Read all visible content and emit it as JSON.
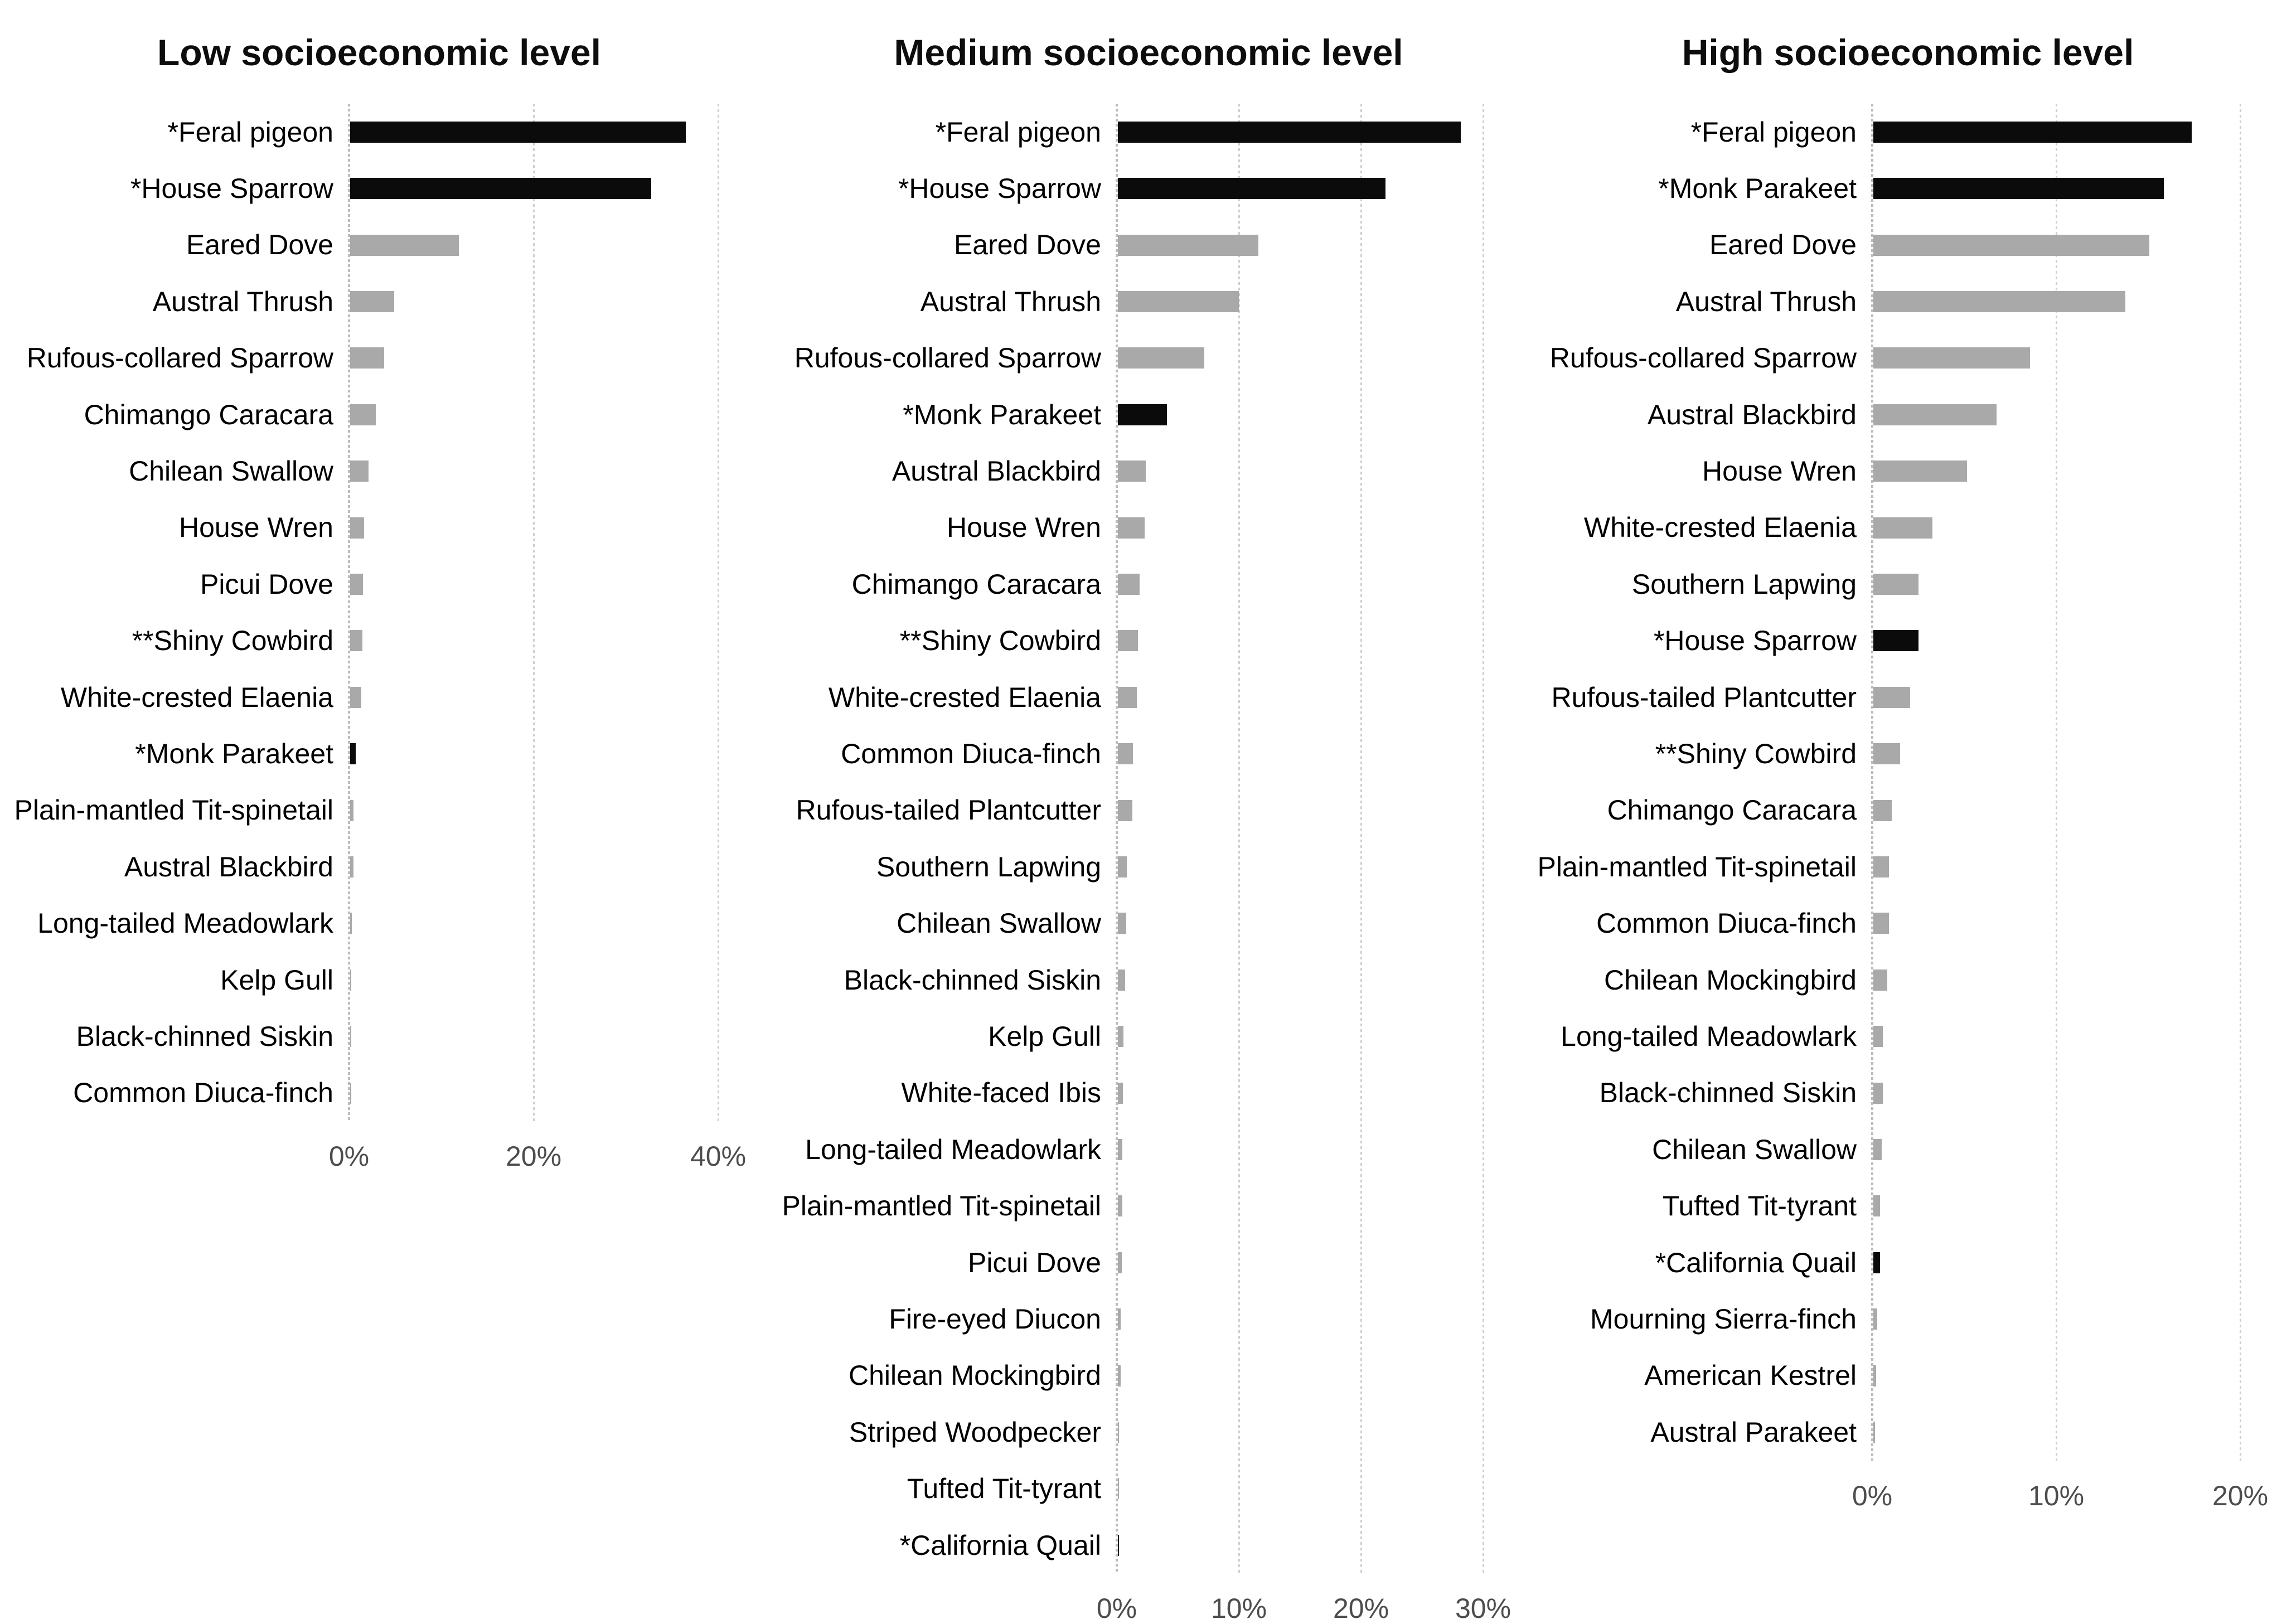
{
  "figure": {
    "background": "#ffffff",
    "bar_colors": {
      "black": "#0b0b0b",
      "gray": "#a9a9a9"
    },
    "gridline_color": "#cfcfcf",
    "axis_line_color": "#bdbdbd",
    "tick_label_color": "#4d4d4d",
    "title_color": "#0d0d0d",
    "species_label_color": "#000000"
  },
  "chart_data": [
    {
      "type": "bar",
      "orientation": "horizontal",
      "title": "Low socioeconomic level",
      "value_unit": "percent",
      "xlim": [
        0,
        43
      ],
      "x_ticks": [
        "0%",
        "20%",
        "40%"
      ],
      "x_tick_values": [
        0,
        20,
        40
      ],
      "grid": true,
      "species": [
        {
          "label": "*Feral pigeon",
          "value": 36.4,
          "bar": "black"
        },
        {
          "label": "*House Sparrow",
          "value": 32.6,
          "bar": "black"
        },
        {
          "label": "Eared Dove",
          "value": 11.8,
          "bar": "gray"
        },
        {
          "label": "Austral Thrush",
          "value": 4.8,
          "bar": "gray"
        },
        {
          "label": "Rufous-collared Sparrow",
          "value": 3.7,
          "bar": "gray"
        },
        {
          "label": "Chimango Caracara",
          "value": 2.8,
          "bar": "gray"
        },
        {
          "label": "Chilean Swallow",
          "value": 2.0,
          "bar": "gray"
        },
        {
          "label": "House Wren",
          "value": 1.5,
          "bar": "gray"
        },
        {
          "label": "Picui Dove",
          "value": 1.4,
          "bar": "gray"
        },
        {
          "label": "**Shiny Cowbird",
          "value": 1.3,
          "bar": "gray"
        },
        {
          "label": "White-crested Elaenia",
          "value": 1.2,
          "bar": "gray"
        },
        {
          "label": "*Monk Parakeet",
          "value": 0.6,
          "bar": "black"
        },
        {
          "label": "Plain-mantled Tit-spinetail",
          "value": 0.35,
          "bar": "gray"
        },
        {
          "label": "Austral Blackbird",
          "value": 0.35,
          "bar": "gray"
        },
        {
          "label": "Long-tailed Meadowlark",
          "value": 0.2,
          "bar": "gray"
        },
        {
          "label": "Kelp Gull",
          "value": 0.15,
          "bar": "gray"
        },
        {
          "label": "Black-chinned Siskin",
          "value": 0.1,
          "bar": "gray"
        },
        {
          "label": "Common Diuca-finch",
          "value": 0.1,
          "bar": "gray"
        }
      ]
    },
    {
      "type": "bar",
      "orientation": "horizontal",
      "title": "Medium socioeconomic level",
      "value_unit": "percent",
      "xlim": [
        0,
        34
      ],
      "x_ticks": [
        "0%",
        "10%",
        "20%",
        "30%"
      ],
      "x_tick_values": [
        0,
        10,
        20,
        30
      ],
      "grid": true,
      "species": [
        {
          "label": "*Feral pigeon",
          "value": 28.1,
          "bar": "black"
        },
        {
          "label": "*House Sparrow",
          "value": 21.9,
          "bar": "black"
        },
        {
          "label": "Eared Dove",
          "value": 11.5,
          "bar": "gray"
        },
        {
          "label": "Austral Thrush",
          "value": 9.9,
          "bar": "gray"
        },
        {
          "label": "Rufous-collared Sparrow",
          "value": 7.1,
          "bar": "gray"
        },
        {
          "label": "*Monk Parakeet",
          "value": 4.0,
          "bar": "black"
        },
        {
          "label": "Austral Blackbird",
          "value": 2.3,
          "bar": "gray"
        },
        {
          "label": "House Wren",
          "value": 2.2,
          "bar": "gray"
        },
        {
          "label": "Chimango Caracara",
          "value": 1.8,
          "bar": "gray"
        },
        {
          "label": "**Shiny Cowbird",
          "value": 1.65,
          "bar": "gray"
        },
        {
          "label": "White-crested Elaenia",
          "value": 1.55,
          "bar": "gray"
        },
        {
          "label": "Common Diuca-finch",
          "value": 1.25,
          "bar": "gray"
        },
        {
          "label": "Rufous-tailed Plantcutter",
          "value": 1.2,
          "bar": "gray"
        },
        {
          "label": "Southern Lapwing",
          "value": 0.75,
          "bar": "gray"
        },
        {
          "label": "Chilean Swallow",
          "value": 0.7,
          "bar": "gray"
        },
        {
          "label": "Black-chinned Siskin",
          "value": 0.6,
          "bar": "gray"
        },
        {
          "label": "Kelp Gull",
          "value": 0.45,
          "bar": "gray"
        },
        {
          "label": "White-faced Ibis",
          "value": 0.4,
          "bar": "gray"
        },
        {
          "label": "Long-tailed Meadowlark",
          "value": 0.35,
          "bar": "gray"
        },
        {
          "label": "Plain-mantled Tit-spinetail",
          "value": 0.35,
          "bar": "gray"
        },
        {
          "label": "Picui Dove",
          "value": 0.3,
          "bar": "gray"
        },
        {
          "label": "Fire-eyed Diucon",
          "value": 0.25,
          "bar": "gray"
        },
        {
          "label": "Chilean Mockingbird",
          "value": 0.25,
          "bar": "gray"
        },
        {
          "label": "Striped Woodpecker",
          "value": 0.1,
          "bar": "gray"
        },
        {
          "label": "Tufted Tit-tyrant",
          "value": 0.1,
          "bar": "gray"
        },
        {
          "label": "*California Quail",
          "value": 0.05,
          "bar": "black"
        }
      ]
    },
    {
      "type": "bar",
      "orientation": "horizontal",
      "title": "High socioeconomic level",
      "value_unit": "percent",
      "xlim": [
        0,
        21
      ],
      "x_ticks": [
        "0%",
        "10%",
        "20%"
      ],
      "x_tick_values": [
        0,
        10,
        20
      ],
      "grid": true,
      "species": [
        {
          "label": "*Feral pigeon",
          "value": 17.3,
          "bar": "black"
        },
        {
          "label": "*Monk Parakeet",
          "value": 15.8,
          "bar": "black"
        },
        {
          "label": "Eared Dove",
          "value": 15.0,
          "bar": "gray"
        },
        {
          "label": "Austral Thrush",
          "value": 13.7,
          "bar": "gray"
        },
        {
          "label": "Rufous-collared Sparrow",
          "value": 8.5,
          "bar": "gray"
        },
        {
          "label": "Austral Blackbird",
          "value": 6.7,
          "bar": "gray"
        },
        {
          "label": "House Wren",
          "value": 5.1,
          "bar": "gray"
        },
        {
          "label": "White-crested Elaenia",
          "value": 3.2,
          "bar": "gray"
        },
        {
          "label": "Southern Lapwing",
          "value": 2.45,
          "bar": "gray"
        },
        {
          "label": "*House Sparrow",
          "value": 2.45,
          "bar": "black"
        },
        {
          "label": "Rufous-tailed Plantcutter",
          "value": 2.0,
          "bar": "gray"
        },
        {
          "label": "**Shiny Cowbird",
          "value": 1.45,
          "bar": "gray"
        },
        {
          "label": "Chimango Caracara",
          "value": 1.0,
          "bar": "gray"
        },
        {
          "label": "Plain-mantled Tit-spinetail",
          "value": 0.85,
          "bar": "gray"
        },
        {
          "label": "Common Diuca-finch",
          "value": 0.85,
          "bar": "gray"
        },
        {
          "label": "Chilean Mockingbird",
          "value": 0.75,
          "bar": "gray"
        },
        {
          "label": "Long-tailed Meadowlark",
          "value": 0.5,
          "bar": "gray"
        },
        {
          "label": "Black-chinned Siskin",
          "value": 0.5,
          "bar": "gray"
        },
        {
          "label": "Chilean Swallow",
          "value": 0.45,
          "bar": "gray"
        },
        {
          "label": "Tufted Tit-tyrant",
          "value": 0.35,
          "bar": "gray"
        },
        {
          "label": "*California Quail",
          "value": 0.35,
          "bar": "black"
        },
        {
          "label": "Mourning Sierra-finch",
          "value": 0.2,
          "bar": "gray"
        },
        {
          "label": "American Kestrel",
          "value": 0.15,
          "bar": "gray"
        },
        {
          "label": "Austral Parakeet",
          "value": 0.1,
          "bar": "gray"
        }
      ]
    }
  ]
}
